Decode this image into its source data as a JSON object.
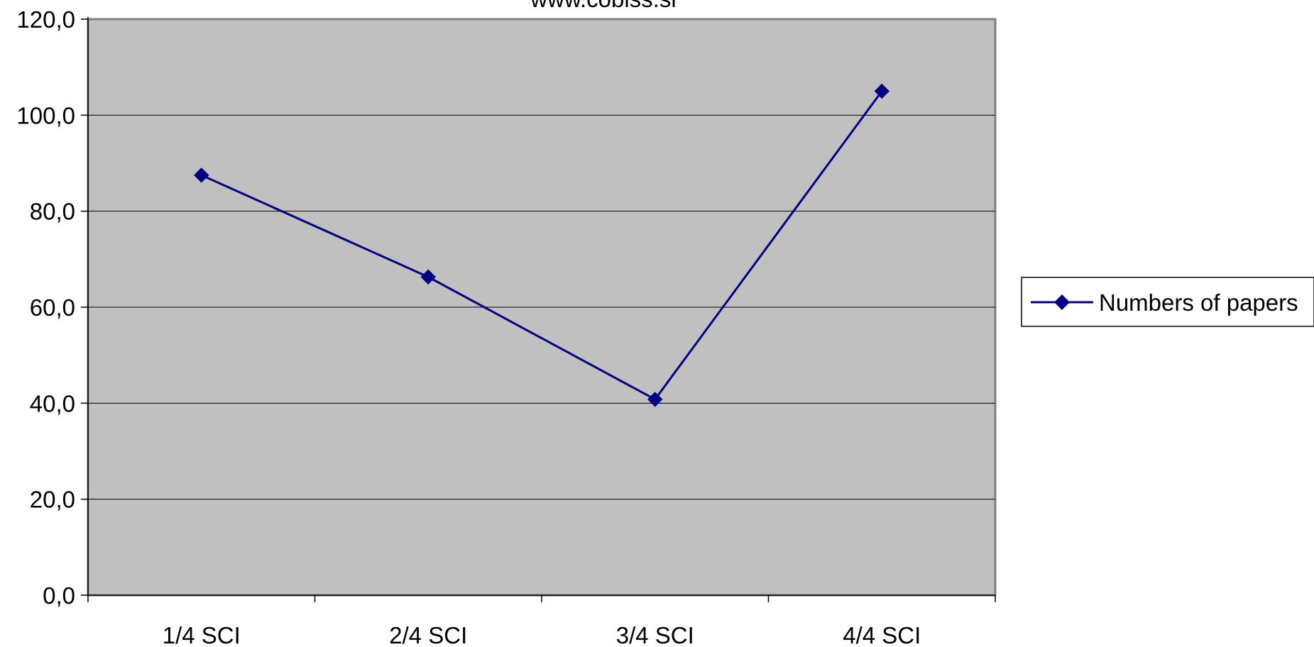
{
  "chart_data": {
    "type": "line",
    "title": "www.cobiss.si",
    "categories": [
      "1/4 SCI",
      "2/4 SCI",
      "3/4 SCI",
      "4/4 SCI"
    ],
    "series": [
      {
        "name": "Numbers of papers",
        "values": [
          87.5,
          66.3,
          40.8,
          105.0
        ]
      }
    ],
    "ylim": [
      0,
      120
    ],
    "yticks": [
      "0,0",
      "20,0",
      "40,0",
      "60,0",
      "80,0",
      "100,0",
      "120,0"
    ],
    "grid": true,
    "legend_position": "right",
    "colors": {
      "plot_background": "#c0c0c0",
      "line": "#000080",
      "marker": "#000080",
      "gridline": "#000000"
    },
    "marker": "diamond"
  }
}
